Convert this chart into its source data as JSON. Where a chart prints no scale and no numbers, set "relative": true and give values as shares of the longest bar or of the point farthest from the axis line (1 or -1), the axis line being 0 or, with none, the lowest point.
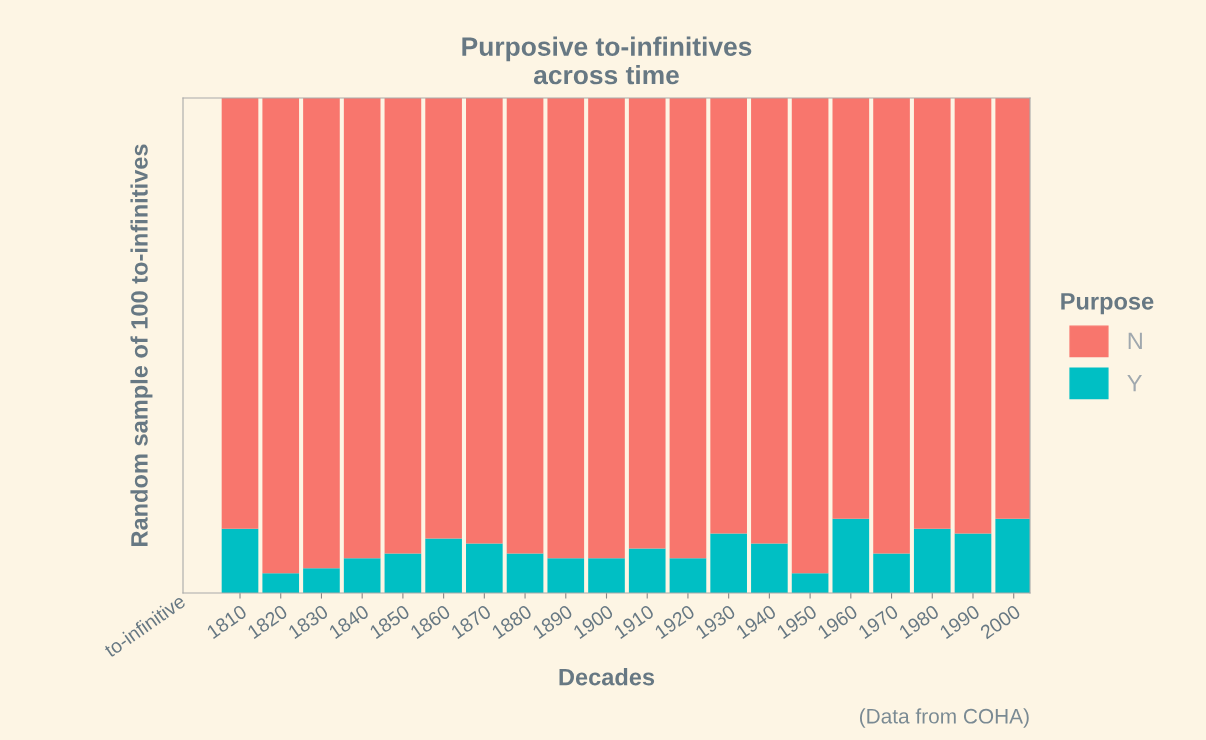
{
  "chart_data": {
    "type": "bar",
    "title": "Purposive to-infinitives\nacross time",
    "xlabel": "Decades",
    "ylabel": "Random sample of 100 to-infinitives",
    "legend_title": "Purpose",
    "categories": [
      "1810",
      "1820",
      "1830",
      "1840",
      "1850",
      "1860",
      "1870",
      "1880",
      "1890",
      "1900",
      "1910",
      "1920",
      "1930",
      "1940",
      "1950",
      "1960",
      "1970",
      "1980",
      "1990",
      "2000"
    ],
    "stacked": true,
    "relative": true,
    "series": [
      {
        "name": "Y",
        "color": "#00bfc4",
        "values": [
          0.13,
          0.04,
          0.05,
          0.07,
          0.08,
          0.11,
          0.1,
          0.08,
          0.07,
          0.07,
          0.09,
          0.07,
          0.12,
          0.1,
          0.04,
          0.15,
          0.08,
          0.13,
          0.12,
          0.15
        ]
      },
      {
        "name": "N",
        "color": "#f8766d",
        "values": [
          0.87,
          0.96,
          0.95,
          0.93,
          0.92,
          0.89,
          0.9,
          0.92,
          0.93,
          0.93,
          0.91,
          0.93,
          0.88,
          0.9,
          0.96,
          0.85,
          0.92,
          0.87,
          0.88,
          0.85
        ]
      }
    ],
    "annotations": [
      "to-infinitive",
      "(Data from COHA)"
    ],
    "legend": "right",
    "grid": false
  }
}
